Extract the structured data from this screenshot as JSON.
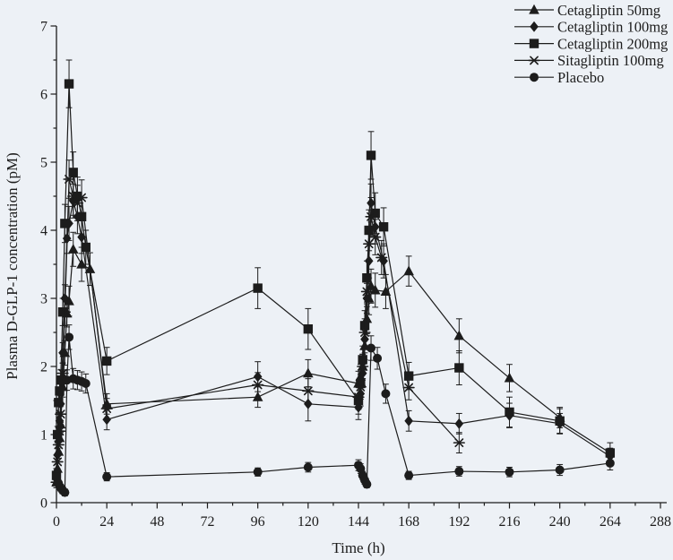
{
  "figure": {
    "background": "#edf1f6",
    "ink": "#1c1c1c"
  },
  "chart_data": {
    "type": "line",
    "title": "",
    "xlabel": "Time (h)",
    "ylabel": "Plasma D-GLP-1 concentration (pM)",
    "xlim": [
      0,
      288
    ],
    "ylim": [
      0,
      7
    ],
    "xticks": [
      0,
      24,
      48,
      72,
      96,
      120,
      144,
      168,
      192,
      216,
      240,
      264,
      288
    ],
    "x_minor_step": 12,
    "yticks": [
      0,
      1,
      2,
      3,
      4,
      5,
      6,
      7
    ],
    "y_minor_step": 0.5,
    "grid": false,
    "error_bars": true,
    "legend_position": "top-right",
    "series": [
      {
        "name": "Cetagliptin 50mg",
        "marker": "triangle",
        "x": [
          0,
          0.5,
          1,
          1.5,
          2,
          3,
          4,
          5,
          6,
          8,
          12,
          16,
          24,
          96,
          120,
          144,
          145,
          146,
          147,
          148,
          149,
          150,
          152,
          157,
          168,
          192,
          216,
          240
        ],
        "y": [
          0.3,
          0.5,
          0.75,
          0.95,
          1.15,
          1.7,
          2.2,
          2.78,
          2.96,
          3.72,
          3.5,
          3.43,
          1.45,
          1.55,
          1.9,
          1.75,
          1.85,
          2.0,
          2.3,
          2.7,
          3.0,
          3.18,
          3.12,
          3.1,
          3.4,
          2.45,
          1.83,
          1.25
        ],
        "err": [
          0.08,
          0.1,
          0.1,
          0.1,
          0.12,
          0.15,
          0.18,
          0.2,
          0.22,
          0.25,
          0.25,
          0.24,
          0.15,
          0.15,
          0.2,
          0.18,
          0.18,
          0.18,
          0.2,
          0.22,
          0.24,
          0.25,
          0.25,
          0.25,
          0.22,
          0.25,
          0.2,
          0.15
        ]
      },
      {
        "name": "Cetagliptin 100mg",
        "marker": "diamond",
        "x": [
          0,
          0.5,
          1,
          1.5,
          2,
          3,
          4,
          5,
          6,
          8,
          10,
          12,
          24,
          96,
          120,
          144,
          145,
          146,
          147,
          148,
          149,
          150,
          152,
          156,
          168,
          192,
          216,
          240,
          264
        ],
        "y": [
          0.35,
          0.7,
          1.0,
          1.2,
          1.45,
          2.2,
          3.0,
          3.88,
          4.1,
          4.43,
          4.2,
          3.9,
          1.22,
          1.85,
          1.45,
          1.4,
          1.6,
          1.9,
          2.4,
          3.0,
          3.55,
          4.4,
          4.05,
          3.55,
          1.2,
          1.16,
          1.28,
          1.16,
          0.68
        ],
        "err": [
          0.08,
          0.1,
          0.1,
          0.12,
          0.12,
          0.15,
          0.2,
          0.22,
          0.25,
          0.25,
          0.25,
          0.24,
          0.15,
          0.22,
          0.25,
          0.18,
          0.18,
          0.18,
          0.2,
          0.22,
          0.25,
          0.28,
          0.25,
          0.25,
          0.15,
          0.15,
          0.18,
          0.15,
          0.12
        ]
      },
      {
        "name": "Cetagliptin 200mg",
        "marker": "square",
        "x": [
          0,
          0.5,
          1,
          1.5,
          2,
          3,
          4,
          6,
          8,
          10,
          12,
          14,
          24,
          96,
          120,
          144,
          145,
          146,
          147,
          148,
          149,
          150,
          152,
          156,
          168,
          192,
          216,
          240,
          264
        ],
        "y": [
          0.4,
          1.0,
          1.47,
          1.64,
          1.8,
          2.8,
          4.1,
          6.15,
          4.85,
          4.5,
          4.2,
          3.75,
          2.08,
          3.15,
          2.55,
          1.5,
          1.75,
          2.1,
          2.6,
          3.3,
          4.0,
          5.1,
          4.25,
          4.05,
          1.86,
          1.98,
          1.33,
          1.2,
          0.73
        ],
        "err": [
          0.1,
          0.12,
          0.15,
          0.15,
          0.15,
          0.2,
          0.28,
          0.35,
          0.3,
          0.28,
          0.28,
          0.25,
          0.2,
          0.3,
          0.3,
          0.2,
          0.2,
          0.2,
          0.22,
          0.25,
          0.3,
          0.35,
          0.3,
          0.28,
          0.2,
          0.25,
          0.22,
          0.18,
          0.15
        ]
      },
      {
        "name": "Sitagliptin 100mg",
        "marker": "asterisk",
        "x": [
          0,
          0.5,
          1,
          1.5,
          2,
          3,
          4,
          6,
          8,
          10,
          12,
          24,
          96,
          120,
          144,
          145,
          146,
          147,
          148,
          149,
          150,
          152,
          155,
          168,
          192
        ],
        "y": [
          0.3,
          0.6,
          0.85,
          1.05,
          1.3,
          1.9,
          2.8,
          4.75,
          4.5,
          4.4,
          4.48,
          1.38,
          1.73,
          1.64,
          1.55,
          1.7,
          2.0,
          2.5,
          3.1,
          3.8,
          4.2,
          3.9,
          3.6,
          1.69,
          0.88
        ],
        "err": [
          0.08,
          0.1,
          0.1,
          0.12,
          0.12,
          0.15,
          0.2,
          0.28,
          0.28,
          0.26,
          0.26,
          0.15,
          0.18,
          0.18,
          0.18,
          0.18,
          0.18,
          0.2,
          0.22,
          0.25,
          0.28,
          0.26,
          0.25,
          0.18,
          0.15
        ]
      },
      {
        "name": "Placebo",
        "marker": "circle",
        "x": [
          0,
          1,
          2,
          3,
          4,
          5,
          6,
          8,
          10,
          12,
          14,
          24,
          96,
          120,
          144,
          145,
          146,
          147,
          148,
          150,
          153,
          157,
          168,
          192,
          216,
          240,
          264
        ],
        "y": [
          0.38,
          0.28,
          0.22,
          0.18,
          0.15,
          1.8,
          2.43,
          1.82,
          1.8,
          1.78,
          1.75,
          0.38,
          0.45,
          0.52,
          0.55,
          0.5,
          0.4,
          0.33,
          0.27,
          2.27,
          2.12,
          1.6,
          0.4,
          0.46,
          0.45,
          0.48,
          0.58
        ],
        "err": [
          0.06,
          0.05,
          0.05,
          0.05,
          0.05,
          0.15,
          0.18,
          0.15,
          0.14,
          0.14,
          0.14,
          0.06,
          0.06,
          0.07,
          0.08,
          0.07,
          0.06,
          0.06,
          0.05,
          0.18,
          0.16,
          0.14,
          0.06,
          0.07,
          0.07,
          0.08,
          0.1
        ]
      }
    ]
  }
}
